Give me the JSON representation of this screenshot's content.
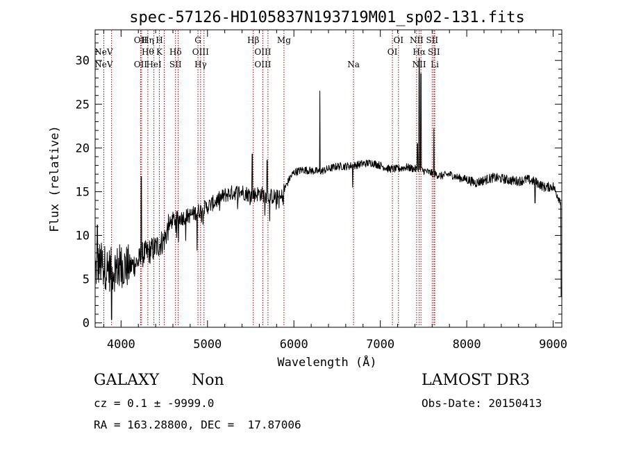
{
  "colors": {
    "background": "#ffffff",
    "axis": "#000000",
    "spectrum": "#000000",
    "lines": "#8b0000"
  },
  "chart_data": {
    "type": "line",
    "title": "spec-57126-HD105837N193719M01_sp02-131.fits",
    "xlabel": "Wavelength (Å)",
    "ylabel": "Flux (relative)",
    "xlim": [
      3700,
      9100
    ],
    "ylim": [
      -0.5,
      33.5
    ],
    "xticks": [
      4000,
      5000,
      6000,
      7000,
      8000,
      9000
    ],
    "yticks": [
      0,
      5,
      10,
      15,
      20,
      25,
      30
    ],
    "x_minor_step": 200,
    "y_minor_step": 1,
    "grid": false,
    "spectrum_anchors": [
      [
        3700,
        6.0
      ],
      [
        3750,
        6.8
      ],
      [
        3800,
        6.5
      ],
      [
        3850,
        6.2
      ],
      [
        3900,
        6.0
      ],
      [
        4000,
        6.6
      ],
      [
        4100,
        6.4
      ],
      [
        4200,
        7.0
      ],
      [
        4250,
        7.8
      ],
      [
        4300,
        8.0
      ],
      [
        4400,
        8.6
      ],
      [
        4500,
        9.5
      ],
      [
        4550,
        11.0
      ],
      [
        4600,
        11.8
      ],
      [
        4700,
        12.0
      ],
      [
        4800,
        12.3
      ],
      [
        4900,
        12.8
      ],
      [
        5000,
        13.3
      ],
      [
        5100,
        13.9
      ],
      [
        5200,
        14.6
      ],
      [
        5300,
        14.9
      ],
      [
        5400,
        15.0
      ],
      [
        5500,
        14.6
      ],
      [
        5600,
        14.8
      ],
      [
        5700,
        14.5
      ],
      [
        5800,
        14.4
      ],
      [
        5850,
        14.2
      ],
      [
        5900,
        15.5
      ],
      [
        5950,
        16.5
      ],
      [
        6000,
        17.2
      ],
      [
        6100,
        17.5
      ],
      [
        6200,
        17.4
      ],
      [
        6300,
        17.3
      ],
      [
        6400,
        17.6
      ],
      [
        6500,
        17.9
      ],
      [
        6600,
        17.9
      ],
      [
        6700,
        18.0
      ],
      [
        6800,
        18.2
      ],
      [
        6900,
        18.3
      ],
      [
        7000,
        18.0
      ],
      [
        7100,
        17.6
      ],
      [
        7200,
        17.6
      ],
      [
        7300,
        17.8
      ],
      [
        7400,
        17.6
      ],
      [
        7500,
        17.4
      ],
      [
        7600,
        17.1
      ],
      [
        7700,
        16.8
      ],
      [
        7800,
        17.0
      ],
      [
        7900,
        16.6
      ],
      [
        8000,
        16.4
      ],
      [
        8100,
        16.0
      ],
      [
        8200,
        16.3
      ],
      [
        8300,
        16.6
      ],
      [
        8400,
        16.5
      ],
      [
        8500,
        16.3
      ],
      [
        8600,
        16.2
      ],
      [
        8700,
        16.4
      ],
      [
        8800,
        16.1
      ],
      [
        8900,
        15.5
      ],
      [
        9000,
        15.6
      ],
      [
        9080,
        14.0
      ]
    ],
    "emission_features": [
      {
        "wave": 3727,
        "peak": 11.2
      },
      {
        "wave": 4233,
        "peak": 16.7
      },
      {
        "wave": 5519,
        "peak": 19.3
      },
      {
        "wave": 5690,
        "peak": 18.6
      },
      {
        "wave": 6300,
        "peak": 26.5
      },
      {
        "wave": 7430,
        "peak": 20.5
      },
      {
        "wave": 7450,
        "peak": 30.2
      },
      {
        "wave": 7470,
        "peak": 28.5
      },
      {
        "wave": 7620,
        "peak": 22.2
      }
    ],
    "absorption_features": [
      {
        "wave": 3889,
        "depth": 0.4
      },
      {
        "wave": 4880,
        "depth": 8.3
      },
      {
        "wave": 6680,
        "depth": 15.5
      },
      {
        "wave": 8790,
        "depth": 13.7
      },
      {
        "wave": 9095,
        "depth": 3.0
      }
    ],
    "line_markers": [
      {
        "wave": 3800,
        "label": "NeV",
        "row": 2
      },
      {
        "wave": 3800,
        "label": "NeV",
        "row": 3
      },
      {
        "wave": 3890,
        "label": "",
        "row": 0
      },
      {
        "wave": 4226,
        "label": "OII",
        "row": 1
      },
      {
        "wave": 4226,
        "label": "OII",
        "row": 3
      },
      {
        "wave": 4237,
        "label": "",
        "row": 0
      },
      {
        "wave": 4310,
        "label": "Hη",
        "row": 1
      },
      {
        "wave": 4310,
        "label": "Hθ",
        "row": 2
      },
      {
        "wave": 4380,
        "label": "HeI",
        "row": 3
      },
      {
        "wave": 4443,
        "label": "H",
        "row": 1
      },
      {
        "wave": 4443,
        "label": "K",
        "row": 2
      },
      {
        "wave": 4500,
        "label": "",
        "row": 0
      },
      {
        "wave": 4630,
        "label": "Hδ",
        "row": 2
      },
      {
        "wave": 4630,
        "label": "SII",
        "row": 3
      },
      {
        "wave": 4660,
        "label": "",
        "row": 0
      },
      {
        "wave": 4890,
        "label": "G",
        "row": 1
      },
      {
        "wave": 4920,
        "label": "OIII",
        "row": 2
      },
      {
        "wave": 4920,
        "label": "Hγ",
        "row": 3
      },
      {
        "wave": 4960,
        "label": "",
        "row": 0
      },
      {
        "wave": 5530,
        "label": "Hβ",
        "row": 1
      },
      {
        "wave": 5640,
        "label": "OIII",
        "row": 2
      },
      {
        "wave": 5640,
        "label": "OIII",
        "row": 3
      },
      {
        "wave": 5700,
        "label": "",
        "row": 0
      },
      {
        "wave": 5885,
        "label": "Mg",
        "row": 1
      },
      {
        "wave": 6690,
        "label": "Na",
        "row": 3
      },
      {
        "wave": 7140,
        "label": "OI",
        "row": 2
      },
      {
        "wave": 7210,
        "label": "OI",
        "row": 1
      },
      {
        "wave": 7420,
        "label": "NII",
        "row": 1
      },
      {
        "wave": 7450,
        "label": "Hα",
        "row": 2
      },
      {
        "wave": 7450,
        "label": "NII",
        "row": 3
      },
      {
        "wave": 7470,
        "label": "",
        "row": 0
      },
      {
        "wave": 7600,
        "label": "SII",
        "row": 1
      },
      {
        "wave": 7620,
        "label": "SII",
        "row": 2
      },
      {
        "wave": 7630,
        "label": "Li",
        "row": 3
      }
    ]
  },
  "info": {
    "object_class": "GALAXY",
    "subclass": "Non",
    "redshift_line": "cz = 0.1 ± -9999.0",
    "coords_line": "RA = 163.28800, DEC =  17.87006",
    "survey": "LAMOST DR3",
    "obs_date": "Obs-Date: 20150413"
  }
}
